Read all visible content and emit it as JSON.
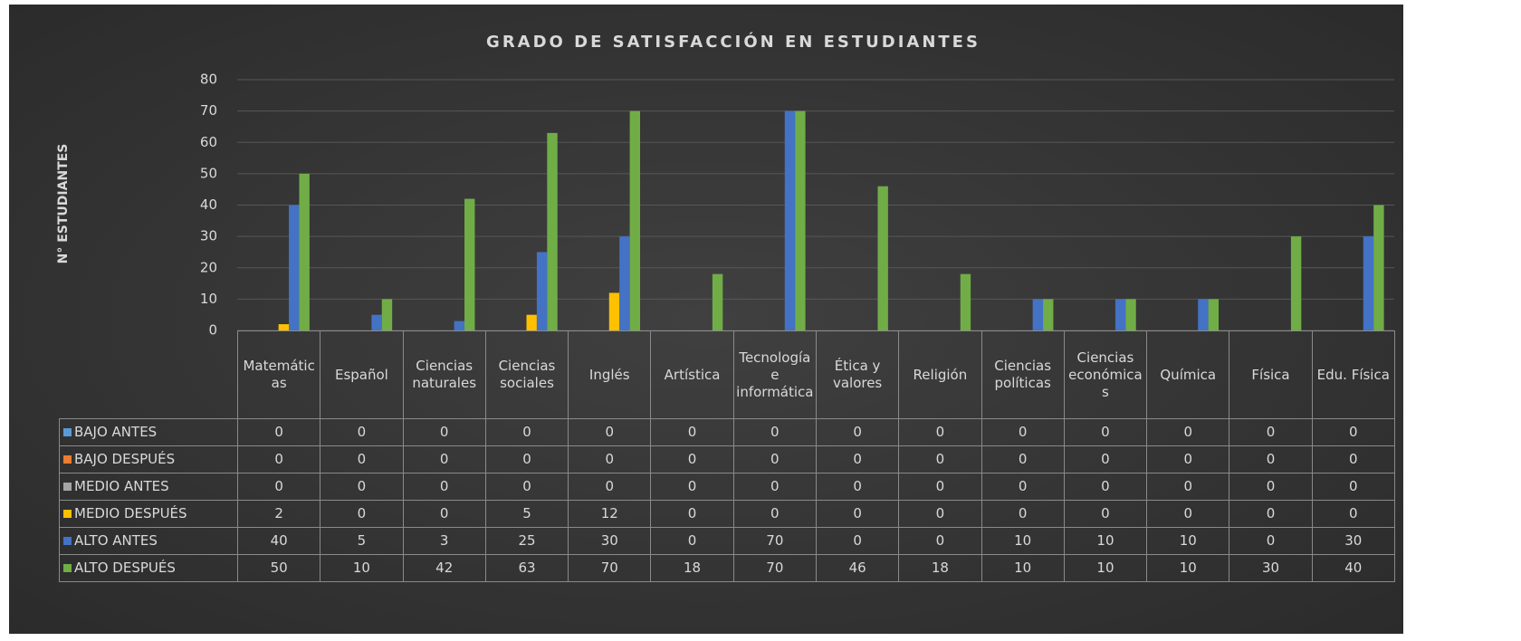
{
  "chart_data": {
    "type": "bar",
    "title": "GRADO DE SATISFACCIÓN EN ESTUDIANTES",
    "y_label": "N° ESTUDIANTES",
    "categories": [
      "Matemáticas",
      "Español",
      "Ciencias naturales",
      "Ciencias sociales",
      "Inglés",
      "Artística",
      "Tecnología e informática",
      "Ética y valores",
      "Religión",
      "Ciencias políticas",
      "Ciencias económicas",
      "Química",
      "Física",
      "Edu. Física"
    ],
    "series": [
      {
        "name": "BAJO ANTES",
        "color": "#5b9bd5",
        "values": [
          0,
          0,
          0,
          0,
          0,
          0,
          0,
          0,
          0,
          0,
          0,
          0,
          0,
          0
        ]
      },
      {
        "name": "BAJO DESPUÉS",
        "color": "#ed7d31",
        "values": [
          0,
          0,
          0,
          0,
          0,
          0,
          0,
          0,
          0,
          0,
          0,
          0,
          0,
          0
        ]
      },
      {
        "name": "MEDIO ANTES",
        "color": "#a5a5a5",
        "values": [
          0,
          0,
          0,
          0,
          0,
          0,
          0,
          0,
          0,
          0,
          0,
          0,
          0,
          0
        ]
      },
      {
        "name": "MEDIO DESPUÉS",
        "color": "#ffc000",
        "values": [
          2,
          0,
          0,
          5,
          12,
          0,
          0,
          0,
          0,
          0,
          0,
          0,
          0,
          0
        ]
      },
      {
        "name": "ALTO ANTES",
        "color": "#4472c4",
        "values": [
          40,
          5,
          3,
          25,
          30,
          0,
          70,
          0,
          0,
          10,
          10,
          10,
          0,
          30
        ]
      },
      {
        "name": "ALTO DESPUÉS",
        "color": "#70ad47",
        "values": [
          50,
          10,
          42,
          63,
          70,
          18,
          70,
          46,
          18,
          10,
          10,
          10,
          30,
          40
        ]
      }
    ],
    "ylim": [
      0,
      80
    ],
    "yticks": [
      0,
      10,
      20,
      30,
      40,
      50,
      60,
      70,
      80
    ],
    "grid": true
  }
}
